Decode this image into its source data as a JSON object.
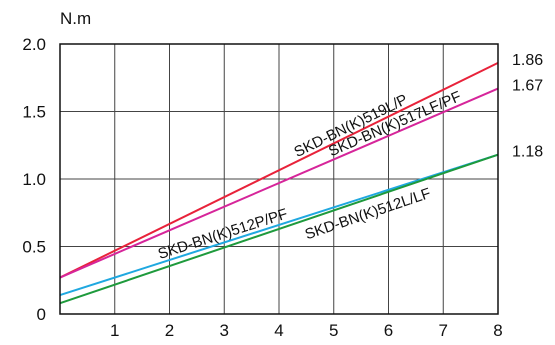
{
  "chart_data": {
    "type": "line",
    "ylabel": "N.m",
    "xlim": [
      0,
      8
    ],
    "ylim": [
      0,
      2.0
    ],
    "x_ticks": [
      "1",
      "2",
      "3",
      "4",
      "5",
      "6",
      "7",
      "8"
    ],
    "y_ticks": [
      "0",
      "0.5",
      "1.0",
      "1.5",
      "2.0"
    ],
    "grid": true,
    "series": [
      {
        "name": "SKD-BN(K)519L/P",
        "color": "#e8223a",
        "x": [
          0,
          8
        ],
        "y": [
          0.27,
          1.86
        ],
        "end_label": "1.86"
      },
      {
        "name": "SKD-BN(K)517LF/PF",
        "color": "#d6259a",
        "x": [
          0,
          8
        ],
        "y": [
          0.27,
          1.67
        ],
        "end_label": "1.67"
      },
      {
        "name": "SKD-BN(K)512P/PF",
        "color": "#1fa8e0",
        "x": [
          0,
          8
        ],
        "y": [
          0.14,
          1.18
        ],
        "end_label": ""
      },
      {
        "name": "SKD-BN(K)512L/LF",
        "color": "#1e9a3c",
        "x": [
          0,
          8
        ],
        "y": [
          0.08,
          1.18
        ],
        "end_label": "1.18"
      }
    ]
  }
}
